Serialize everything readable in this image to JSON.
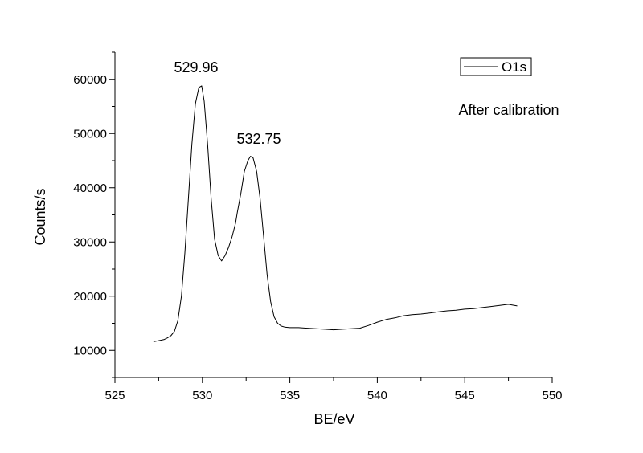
{
  "chart_data": {
    "type": "line",
    "xlabel": "BE/eV",
    "ylabel": "Counts/s",
    "xlim": [
      525,
      550
    ],
    "ylim": [
      5000,
      65000
    ],
    "x_ticks": [
      525,
      530,
      535,
      540,
      545,
      550
    ],
    "y_ticks": [
      10000,
      20000,
      30000,
      40000,
      50000,
      60000
    ],
    "x_tick_labels": [
      "525",
      "530",
      "535",
      "540",
      "545",
      "550"
    ],
    "y_tick_labels": [
      "10000",
      "20000",
      "30000",
      "40000",
      "50000",
      "60000"
    ],
    "grid": false,
    "legend_position": "top-right",
    "annotations": {
      "peak1": "529.96",
      "peak2": "532.75",
      "note": "After calibration"
    },
    "series": [
      {
        "name": "O1s",
        "color": "#000000",
        "x": [
          527.2,
          527.5,
          527.8,
          528.0,
          528.2,
          528.4,
          528.6,
          528.8,
          529.0,
          529.2,
          529.4,
          529.6,
          529.8,
          529.96,
          530.1,
          530.3,
          530.5,
          530.7,
          530.9,
          531.1,
          531.3,
          531.5,
          531.7,
          531.9,
          532.0,
          532.2,
          532.4,
          532.6,
          532.75,
          532.9,
          533.1,
          533.3,
          533.5,
          533.7,
          533.9,
          534.1,
          534.3,
          534.5,
          534.7,
          535.0,
          535.5,
          536.0,
          536.5,
          537.0,
          537.5,
          538.0,
          538.5,
          539.0,
          539.5,
          540.0,
          540.5,
          541.0,
          541.5,
          542.0,
          542.5,
          543.0,
          543.5,
          544.0,
          544.5,
          545.0,
          545.5,
          546.0,
          546.5,
          547.0,
          547.5,
          548.0
        ],
        "y": [
          11600,
          11800,
          12000,
          12300,
          12700,
          13500,
          15500,
          20000,
          28000,
          38000,
          48000,
          55500,
          58500,
          58800,
          56000,
          48000,
          38000,
          30500,
          27500,
          26500,
          27500,
          29000,
          31000,
          33500,
          35500,
          39000,
          43000,
          45000,
          45800,
          45500,
          43000,
          38000,
          31000,
          24000,
          19000,
          16200,
          15000,
          14500,
          14300,
          14200,
          14200,
          14100,
          14000,
          13900,
          13800,
          13900,
          14000,
          14100,
          14600,
          15200,
          15700,
          16000,
          16400,
          16600,
          16700,
          16900,
          17100,
          17300,
          17400,
          17600,
          17700,
          17900,
          18100,
          18300,
          18500,
          18200
        ]
      }
    ]
  }
}
